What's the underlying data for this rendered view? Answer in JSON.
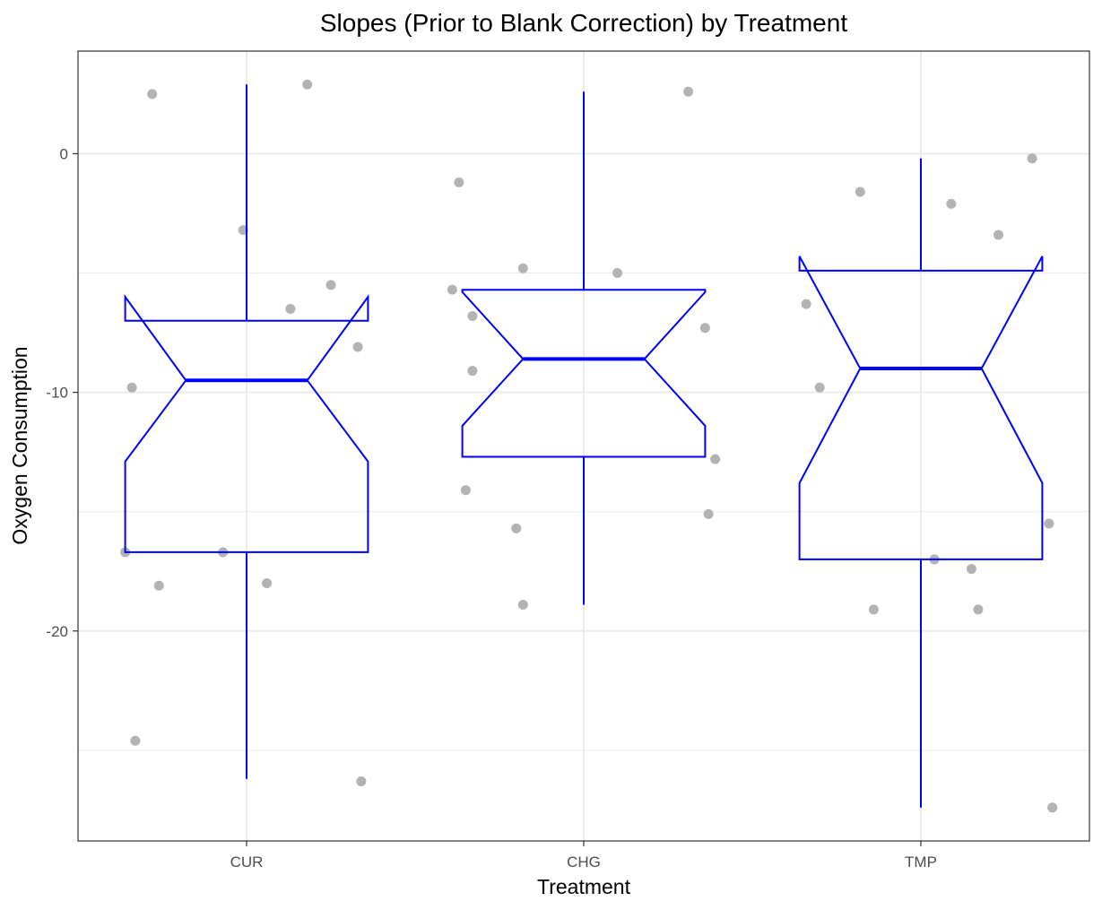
{
  "chart_data": {
    "type": "boxplot",
    "title": "Slopes (Prior to Blank Correction) by Treatment",
    "xlabel": "Treatment",
    "ylabel": "Oxygen Consumption",
    "categories": [
      "CUR",
      "CHG",
      "TMP"
    ],
    "ylim": [
      -28.8,
      4.3
    ],
    "yticks": [
      0,
      -10,
      -20
    ],
    "yticks_labels": [
      "0",
      "-10",
      "-20"
    ],
    "grid": true,
    "notched": true,
    "legend": "none",
    "colors": {
      "box": "#0000ff",
      "points": "#b3b3b3",
      "grid": "#ebebeb",
      "panel_border": "#333333"
    },
    "boxes": [
      {
        "category": "CUR",
        "lower_whisker": -26.2,
        "q1": -16.7,
        "median": -9.5,
        "q3": -7.0,
        "upper_whisker": 2.9,
        "notch_low": -12.9,
        "notch_high": -6.0
      },
      {
        "category": "CHG",
        "lower_whisker": -18.9,
        "q1": -12.7,
        "median": -8.6,
        "q3": -5.7,
        "upper_whisker": 2.6,
        "notch_low": -11.4,
        "notch_high": -5.8
      },
      {
        "category": "TMP",
        "lower_whisker": -27.4,
        "q1": -17.0,
        "median": -9.0,
        "q3": -4.9,
        "upper_whisker": -0.2,
        "notch_low": -13.8,
        "notch_high": -4.3
      }
    ],
    "points": [
      {
        "category": "CUR",
        "jitter": -0.28,
        "y": 2.5
      },
      {
        "category": "CUR",
        "jitter": 0.18,
        "y": 2.9
      },
      {
        "category": "CUR",
        "jitter": -0.01,
        "y": -3.2
      },
      {
        "category": "CUR",
        "jitter": 0.25,
        "y": -5.5
      },
      {
        "category": "CUR",
        "jitter": 0.13,
        "y": -6.5
      },
      {
        "category": "CUR",
        "jitter": 0.33,
        "y": -8.1
      },
      {
        "category": "CUR",
        "jitter": -0.34,
        "y": -9.8
      },
      {
        "category": "CUR",
        "jitter": -0.36,
        "y": -16.7
      },
      {
        "category": "CUR",
        "jitter": -0.07,
        "y": -16.7
      },
      {
        "category": "CUR",
        "jitter": -0.26,
        "y": -18.1
      },
      {
        "category": "CUR",
        "jitter": 0.06,
        "y": -18.0
      },
      {
        "category": "CUR",
        "jitter": -0.33,
        "y": -24.6
      },
      {
        "category": "CUR",
        "jitter": 0.34,
        "y": -26.3
      },
      {
        "category": "CHG",
        "jitter": -0.37,
        "y": -1.2
      },
      {
        "category": "CHG",
        "jitter": 0.31,
        "y": 2.6
      },
      {
        "category": "CHG",
        "jitter": -0.18,
        "y": -4.8
      },
      {
        "category": "CHG",
        "jitter": 0.1,
        "y": -5.0
      },
      {
        "category": "CHG",
        "jitter": -0.39,
        "y": -5.7
      },
      {
        "category": "CHG",
        "jitter": -0.33,
        "y": -6.8
      },
      {
        "category": "CHG",
        "jitter": 0.36,
        "y": -7.3
      },
      {
        "category": "CHG",
        "jitter": -0.33,
        "y": -9.1
      },
      {
        "category": "CHG",
        "jitter": -0.35,
        "y": -14.1
      },
      {
        "category": "CHG",
        "jitter": 0.39,
        "y": -12.8
      },
      {
        "category": "CHG",
        "jitter": -0.2,
        "y": -15.7
      },
      {
        "category": "CHG",
        "jitter": 0.37,
        "y": -15.1
      },
      {
        "category": "CHG",
        "jitter": -0.18,
        "y": -18.9
      },
      {
        "category": "TMP",
        "jitter": -0.18,
        "y": -1.6
      },
      {
        "category": "TMP",
        "jitter": 0.09,
        "y": -2.1
      },
      {
        "category": "TMP",
        "jitter": 0.33,
        "y": -0.2
      },
      {
        "category": "TMP",
        "jitter": 0.23,
        "y": -3.4
      },
      {
        "category": "TMP",
        "jitter": -0.34,
        "y": -6.3
      },
      {
        "category": "TMP",
        "jitter": -0.3,
        "y": -9.8
      },
      {
        "category": "TMP",
        "jitter": 0.38,
        "y": -15.5
      },
      {
        "category": "TMP",
        "jitter": 0.04,
        "y": -17.0
      },
      {
        "category": "TMP",
        "jitter": 0.15,
        "y": -17.4
      },
      {
        "category": "TMP",
        "jitter": -0.14,
        "y": -19.1
      },
      {
        "category": "TMP",
        "jitter": 0.17,
        "y": -19.1
      },
      {
        "category": "TMP",
        "jitter": 0.39,
        "y": -27.4
      }
    ]
  }
}
